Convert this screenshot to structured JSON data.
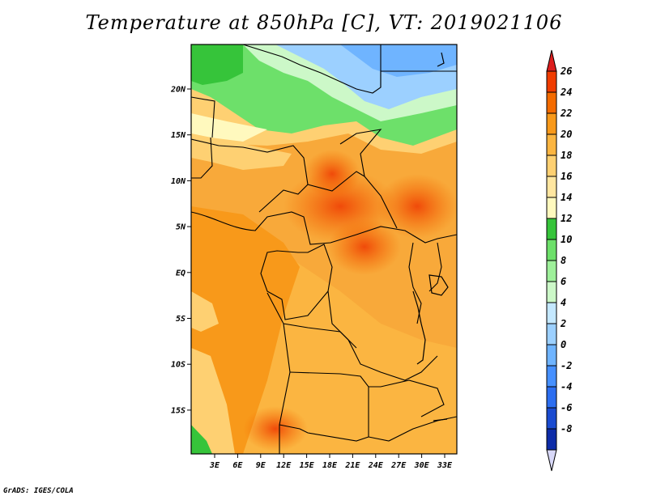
{
  "title": "Temperature at 850hPa [C], VT: 2019021106",
  "credit": "GrADS: IGES/COLA",
  "map": {
    "lat_labels": [
      "20N",
      "15N",
      "10N",
      "5N",
      "EQ",
      "5S",
      "10S",
      "15S"
    ],
    "lon_labels": [
      "3E",
      "6E",
      "9E",
      "12E",
      "15E",
      "18E",
      "21E",
      "24E",
      "27E",
      "30E",
      "33E"
    ]
  },
  "colorbar": {
    "labels": [
      "26",
      "24",
      "22",
      "20",
      "18",
      "16",
      "14",
      "12",
      "10",
      "8",
      "6",
      "4",
      "2",
      "0",
      "-2",
      "-4",
      "-6",
      "-8"
    ],
    "colors": [
      "#dc1e1e",
      "#f03c00",
      "#f46b00",
      "#f8991a",
      "#fbb541",
      "#fed072",
      "#ffe6a0",
      "#fff9be",
      "#36c43a",
      "#6de06a",
      "#9ef09a",
      "#ccf8c8",
      "#c4e8ff",
      "#9cd0ff",
      "#6fb4ff",
      "#4690ff",
      "#2c6ef0",
      "#1a4bd0",
      "#0d2ca8",
      "#06127a"
    ]
  }
}
